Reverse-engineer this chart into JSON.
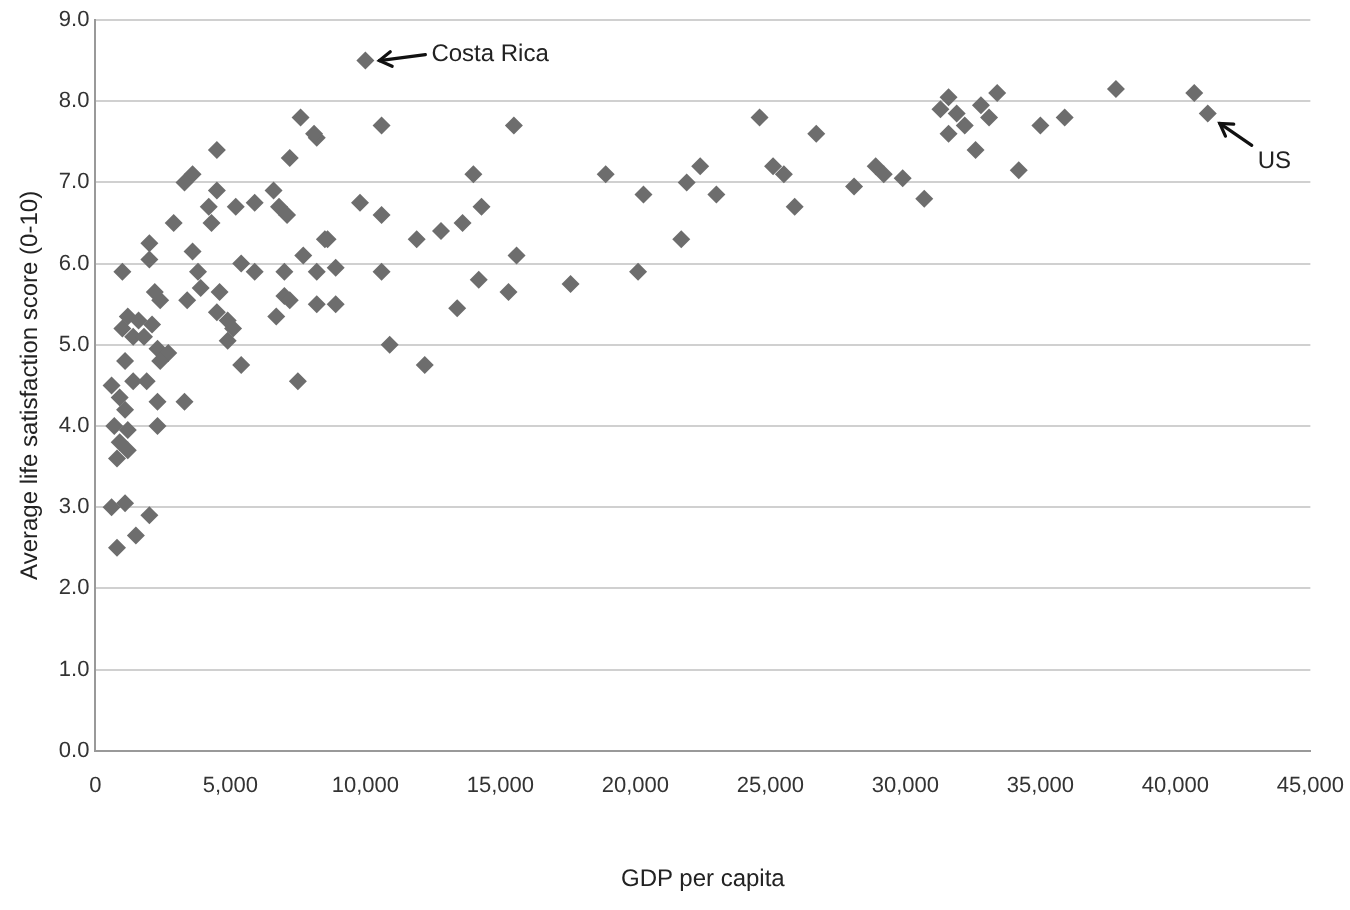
{
  "chart_data": {
    "type": "scatter",
    "xlabel": "GDP per capita",
    "ylabel": "Average life satisfaction score (0-10)",
    "xlim": [
      0,
      45000
    ],
    "ylim": [
      0,
      9
    ],
    "xticks": [
      0,
      {
        "value": 5000,
        "label": "5,000"
      },
      {
        "value": 10000,
        "label": "10,000"
      },
      {
        "value": 15000,
        "label": "15,000"
      },
      {
        "value": 20000,
        "label": "20,000"
      },
      {
        "value": 25000,
        "label": "25,000"
      },
      {
        "value": 30000,
        "label": "30,000"
      },
      {
        "value": 35000,
        "label": "35,000"
      },
      {
        "value": 40000,
        "label": "40,000"
      },
      {
        "value": 45000,
        "label": "45,000"
      }
    ],
    "yticks": [
      {
        "value": 0,
        "label": "0.0"
      },
      {
        "value": 1,
        "label": "1.0"
      },
      {
        "value": 2,
        "label": "2.0"
      },
      {
        "value": 3,
        "label": "3.0"
      },
      {
        "value": 4,
        "label": "4.0"
      },
      {
        "value": 5,
        "label": "5.0"
      },
      {
        "value": 6,
        "label": "6.0"
      },
      {
        "value": 7,
        "label": "7.0"
      },
      {
        "value": 8,
        "label": "8.0"
      },
      {
        "value": 9,
        "label": "9.0"
      }
    ],
    "grid": "y",
    "legend": false,
    "marker": "diamond",
    "annotations": [
      {
        "text": "Costa Rica",
        "x": 10000,
        "y": 8.5
      },
      {
        "text": "US",
        "x": 41200,
        "y": 7.85
      }
    ],
    "series": [
      {
        "color": "#6d6d6d",
        "x": [
          24600,
          26700,
          21700,
          21900,
          22400,
          23000,
          25100,
          25500,
          25900,
          28100,
          28900,
          29200,
          29900,
          30700,
          31300,
          31600,
          31900,
          32200,
          31600,
          32600,
          32800,
          33100,
          33400,
          34200,
          35000,
          35900,
          37800,
          40700,
          41200,
          20300,
          20100,
          10000,
          10600,
          15500,
          8200,
          14000,
          18900,
          9800,
          10600,
          11900,
          12800,
          13600,
          14300,
          8600,
          8900,
          8200,
          10600,
          15600,
          14200,
          15300,
          17600,
          13400,
          8900,
          8200,
          10900,
          12200,
          7600,
          8100,
          7200,
          4500,
          3600,
          3300,
          4500,
          4200,
          4300,
          5200,
          5900,
          6600,
          6800,
          7100,
          2900,
          2000,
          2000,
          1000,
          3600,
          3800,
          5400,
          5900,
          7000,
          7700,
          8500,
          2200,
          2400,
          3400,
          3900,
          4600,
          4500,
          4900,
          5100,
          4900,
          5400,
          7000,
          6700,
          7200,
          7500,
          1000,
          1200,
          1600,
          1400,
          1800,
          2100,
          2300,
          2700,
          2400,
          1100,
          600,
          1400,
          1900,
          2300,
          3300,
          900,
          1100,
          700,
          1200,
          900,
          1200,
          800,
          2300,
          600,
          1100,
          2000,
          1500,
          800
        ],
        "values": [
          7.8,
          7.6,
          6.3,
          7.0,
          7.2,
          6.85,
          7.2,
          7.1,
          6.7,
          6.95,
          7.2,
          7.1,
          7.05,
          6.8,
          7.9,
          8.05,
          7.85,
          7.7,
          7.6,
          7.4,
          7.95,
          7.8,
          8.1,
          7.15,
          7.7,
          7.8,
          8.15,
          8.1,
          7.85,
          6.85,
          5.9,
          8.5,
          7.7,
          7.7,
          7.55,
          7.1,
          7.1,
          6.75,
          6.6,
          6.3,
          6.4,
          6.5,
          6.7,
          6.3,
          5.95,
          5.9,
          5.9,
          6.1,
          5.8,
          5.65,
          5.75,
          5.45,
          5.5,
          5.5,
          5.0,
          4.75,
          7.8,
          7.6,
          7.3,
          7.4,
          7.1,
          7.0,
          6.9,
          6.7,
          6.5,
          6.7,
          6.75,
          6.9,
          6.7,
          6.6,
          6.5,
          6.25,
          6.05,
          5.9,
          6.15,
          5.9,
          6.0,
          5.9,
          5.9,
          6.1,
          6.3,
          5.65,
          5.55,
          5.55,
          5.7,
          5.65,
          5.4,
          5.3,
          5.2,
          5.05,
          4.75,
          5.6,
          5.35,
          5.55,
          4.55,
          5.2,
          5.35,
          5.3,
          5.1,
          5.1,
          5.25,
          4.95,
          4.9,
          4.8,
          4.8,
          4.5,
          4.55,
          4.55,
          4.3,
          4.3,
          4.35,
          4.2,
          4.0,
          3.95,
          3.8,
          3.7,
          3.6,
          4.0,
          3.0,
          3.05,
          2.9,
          2.65,
          2.5
        ]
      }
    ]
  }
}
